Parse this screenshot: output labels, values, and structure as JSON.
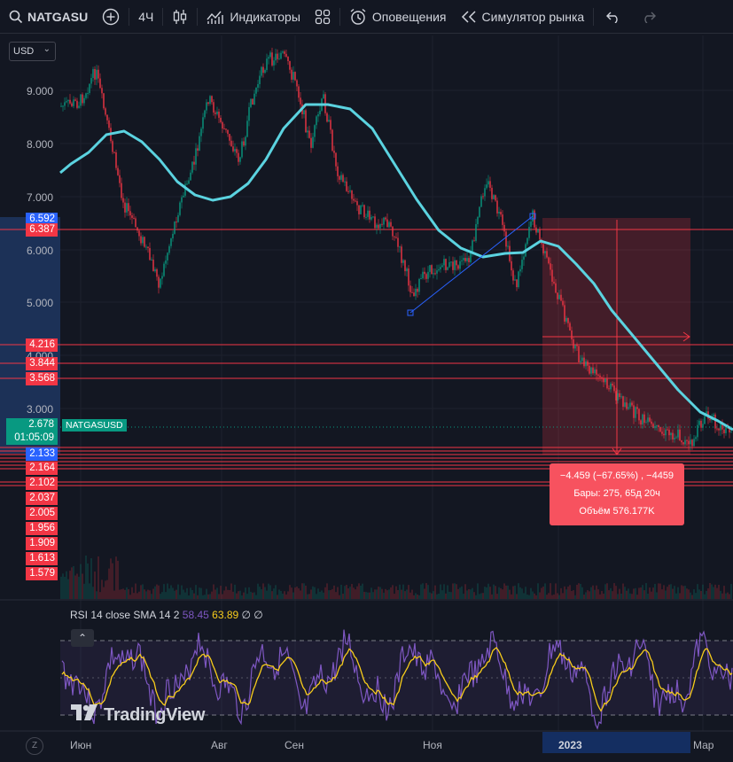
{
  "toolbar": {
    "symbol": "NATGASU",
    "interval": "4Ч",
    "indicators_label": "Индикаторы",
    "alerts_label": "Оповещения",
    "replay_label": "Симулятор рынка"
  },
  "price_scale": {
    "currency": "USD",
    "labels": [
      "9.000",
      "8.000",
      "7.000",
      "6.000",
      "5.000",
      "4.000",
      "3.000"
    ],
    "tags": [
      {
        "value": "6.592",
        "color": "blue"
      },
      {
        "value": "6.387",
        "color": "red"
      },
      {
        "value": "4.216",
        "color": "red"
      },
      {
        "value": "3.844",
        "color": "red"
      },
      {
        "value": "3.568",
        "color": "red"
      },
      {
        "value": "2.133",
        "color": "blue"
      },
      {
        "value": "2.164",
        "color": "red"
      },
      {
        "value": "2.102",
        "color": "red"
      },
      {
        "value": "2.037",
        "color": "red"
      },
      {
        "value": "2.005",
        "color": "red"
      },
      {
        "value": "1.956",
        "color": "red"
      },
      {
        "value": "1.909",
        "color": "red"
      },
      {
        "value": "1.613",
        "color": "red"
      },
      {
        "value": "1.579",
        "color": "red"
      }
    ],
    "current_price": "2.678",
    "countdown": "01:05:09",
    "symbol_label": "NATGASUSD"
  },
  "measure": {
    "line1": "−4.459 (−67.65%) , −4459",
    "line2": "Бары: 275, 65д 20ч",
    "line3": "Объём 576.177K"
  },
  "rsi": {
    "name": "RSI",
    "params": "14 close SMA 14 2",
    "value1": "58.45",
    "value2": "63.89",
    "extra": "∅ ∅"
  },
  "logo": "TradingView",
  "time_axis": [
    "Июн",
    "Авг",
    "Сен",
    "Ноя",
    "2023",
    "Мар"
  ],
  "colors": {
    "background": "#131722",
    "up": "#089981",
    "down": "#f23645",
    "ma": "#5bd3e0",
    "rsi_line": "#7e57c2",
    "rsi_ma": "#f7cc1b",
    "measure_fill": "#f7525f"
  }
}
